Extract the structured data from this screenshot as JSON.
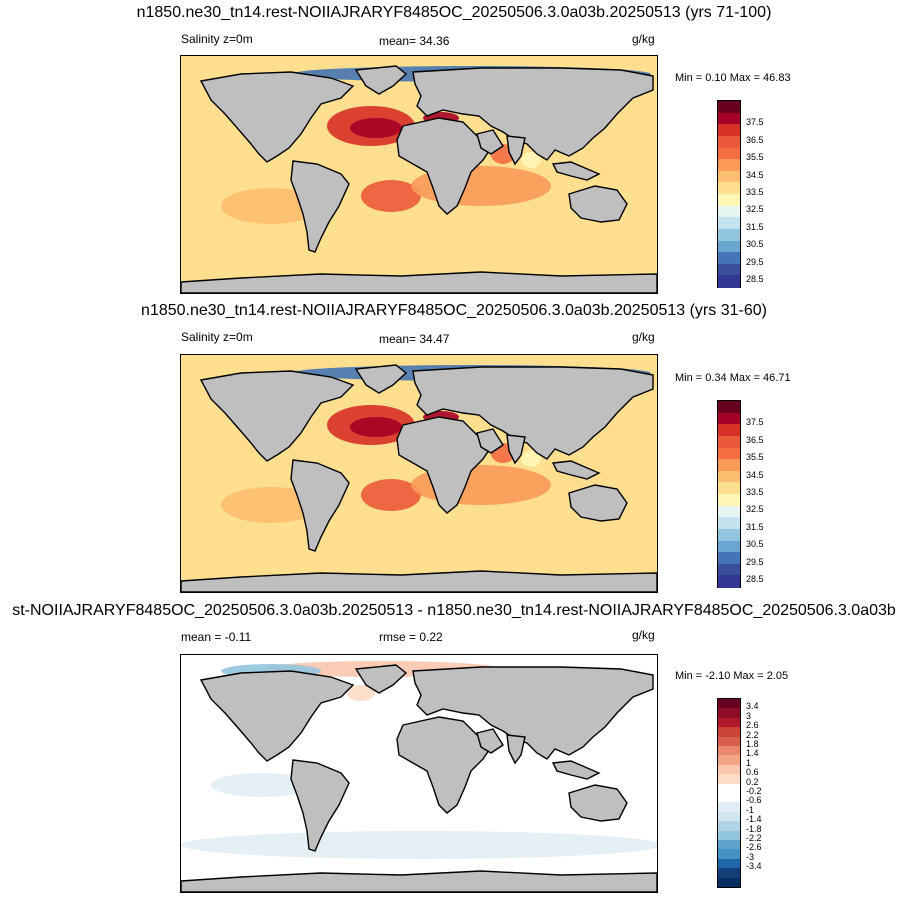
{
  "panels": [
    {
      "title": "n1850.ne30_tn14.rest-NOIIAJRARYF8485OC_20250506.3.0a03b.20250513 (yrs 71-100)",
      "left_label": "Salinity z=0m",
      "center_label": "mean=  34.36",
      "right_label": "g/kg",
      "minmax": "Min =   0.10 Max =  46.83",
      "palette": "abs",
      "levels": [
        "37.5",
        "36.5",
        "35.5",
        "34.5",
        "33.5",
        "32.5",
        "31.5",
        "30.5",
        "29.5",
        "28.5"
      ]
    },
    {
      "title": "n1850.ne30_tn14.rest-NOIIAJRARYF8485OC_20250506.3.0a03b.20250513 (yrs 31-60)",
      "left_label": "Salinity z=0m",
      "center_label": "mean=  34.47",
      "right_label": "g/kg",
      "minmax": "Min =   0.34 Max =  46.71",
      "palette": "abs",
      "levels": [
        "37.5",
        "36.5",
        "35.5",
        "34.5",
        "33.5",
        "32.5",
        "31.5",
        "30.5",
        "29.5",
        "28.5"
      ]
    },
    {
      "title": "st-NOIIAJRARYF8485OC_20250506.3.0a03b.20250513 - n1850.ne30_tn14.rest-NOIIAJRARYF8485OC_20250506.3.0a03b",
      "left_label": "mean =  -0.11",
      "center_label": "rmse =   0.22",
      "right_label": "g/kg",
      "minmax": "Min =  -2.10 Max =   2.05",
      "palette": "diff",
      "levels": [
        "3.4",
        "3",
        "2.6",
        "2.2",
        "1.8",
        "1.4",
        "1",
        "0.6",
        "0.2",
        "-0.2",
        "-0.6",
        "-1",
        "-1.4",
        "-1.8",
        "-2.2",
        "-2.6",
        "-3",
        "-3.4"
      ]
    }
  ],
  "colors": {
    "land": "#bfbfbf",
    "abs_palette": [
      "#67001f",
      "#a50026",
      "#d73027",
      "#ea5a3a",
      "#f46d43",
      "#fb9a59",
      "#fdbe6f",
      "#fedf8f",
      "#fff6b5",
      "#e7f5f0",
      "#c3e3ef",
      "#92c5de",
      "#6aa6cf",
      "#4575b4",
      "#3a4e9c",
      "#313695"
    ],
    "diff_palette": [
      "#67001f",
      "#8c0d25",
      "#b2182b",
      "#cb4335",
      "#d6604d",
      "#e8876b",
      "#f4a582",
      "#fac6ad",
      "#fddbc7",
      "#ffffff",
      "#ffffff",
      "#e1edf5",
      "#d1e5f0",
      "#b0d4e6",
      "#92c5de",
      "#5fa3cd",
      "#4393c3",
      "#2166ac",
      "#163f7a",
      "#053061"
    ]
  }
}
